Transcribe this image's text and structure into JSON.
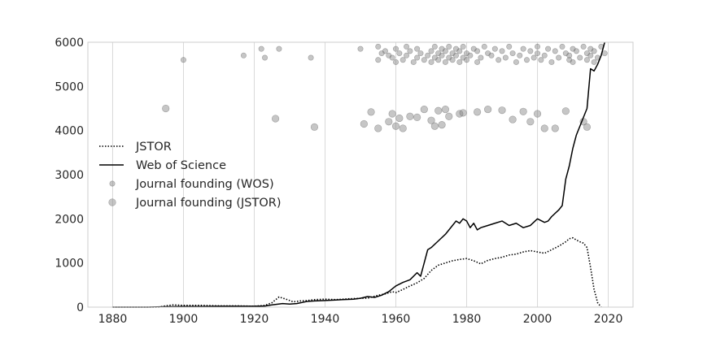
{
  "chart_data": {
    "type": "line",
    "title": "",
    "xlabel": "",
    "ylabel": "",
    "xlim": [
      1873,
      2027
    ],
    "ylim": [
      0,
      6000
    ],
    "xticks": [
      1880,
      1900,
      1920,
      1940,
      1960,
      1980,
      2000,
      2020
    ],
    "yticks": [
      0,
      1000,
      2000,
      3000,
      4000,
      5000,
      6000
    ],
    "grid": "vertical",
    "legend_position": "center-left",
    "series": [
      {
        "name": "JSTOR",
        "style": "dotted",
        "color": "#000000",
        "x": [
          1880,
          1885,
          1890,
          1893,
          1895,
          1897,
          1900,
          1905,
          1910,
          1915,
          1920,
          1923,
          1925,
          1927,
          1929,
          1931,
          1933,
          1935,
          1937,
          1940,
          1943,
          1945,
          1947,
          1950,
          1952,
          1955,
          1957,
          1959,
          1960,
          1962,
          1964,
          1966,
          1968,
          1970,
          1972,
          1974,
          1976,
          1978,
          1980,
          1982,
          1984,
          1986,
          1988,
          1990,
          1992,
          1994,
          1996,
          1998,
          2000,
          2002,
          2004,
          2006,
          2008,
          2009,
          2010,
          2011,
          2012,
          2013,
          2014,
          2015,
          2016,
          2017,
          2018
        ],
        "y": [
          0,
          0,
          0,
          0,
          30,
          50,
          40,
          40,
          30,
          30,
          20,
          40,
          100,
          230,
          180,
          120,
          140,
          150,
          170,
          180,
          170,
          180,
          190,
          200,
          200,
          270,
          300,
          350,
          330,
          400,
          480,
          550,
          650,
          830,
          950,
          1000,
          1050,
          1080,
          1100,
          1050,
          980,
          1060,
          1100,
          1130,
          1180,
          1200,
          1250,
          1280,
          1250,
          1220,
          1300,
          1380,
          1480,
          1550,
          1570,
          1520,
          1480,
          1450,
          1350,
          900,
          400,
          100,
          0
        ]
      },
      {
        "name": "Web of Science",
        "style": "solid",
        "color": "#000000",
        "x": [
          1880,
          1885,
          1890,
          1895,
          1900,
          1905,
          1910,
          1915,
          1920,
          1923,
          1925,
          1928,
          1930,
          1932,
          1935,
          1937,
          1940,
          1943,
          1945,
          1948,
          1950,
          1952,
          1954,
          1956,
          1958,
          1960,
          1962,
          1964,
          1966,
          1967,
          1968,
          1969,
          1970,
          1972,
          1974,
          1976,
          1977,
          1978,
          1979,
          1980,
          1981,
          1982,
          1983,
          1984,
          1986,
          1988,
          1990,
          1992,
          1994,
          1996,
          1998,
          2000,
          2002,
          2003,
          2004,
          2006,
          2007,
          2008,
          2009,
          2010,
          2011,
          2012,
          2013,
          2014,
          2015,
          2016,
          2017,
          2018,
          2019
        ],
        "y": [
          0,
          0,
          0,
          10,
          15,
          15,
          20,
          20,
          20,
          25,
          50,
          80,
          70,
          80,
          130,
          140,
          150,
          160,
          170,
          180,
          200,
          240,
          220,
          270,
          350,
          480,
          560,
          620,
          780,
          700,
          1000,
          1300,
          1350,
          1500,
          1650,
          1850,
          1950,
          1900,
          2000,
          1950,
          1800,
          1900,
          1750,
          1800,
          1850,
          1900,
          1950,
          1850,
          1900,
          1800,
          1850,
          2000,
          1920,
          1950,
          2050,
          2200,
          2300,
          2900,
          3200,
          3600,
          3900,
          4100,
          4300,
          4500,
          5400,
          5350,
          5500,
          5700,
          6000
        ]
      }
    ],
    "scatter_series": [
      {
        "name": "Journal founding (WOS)",
        "color": "#808080",
        "x": [
          1900,
          1917,
          1922,
          1923,
          1927,
          1936,
          1950,
          1955,
          1955,
          1956,
          1957,
          1958,
          1959,
          1960,
          1960,
          1961,
          1962,
          1963,
          1963,
          1964,
          1965,
          1966,
          1966,
          1967,
          1968,
          1969,
          1970,
          1970,
          1971,
          1971,
          1972,
          1972,
          1973,
          1973,
          1974,
          1974,
          1975,
          1975,
          1976,
          1976,
          1977,
          1977,
          1978,
          1978,
          1979,
          1979,
          1980,
          1980,
          1981,
          1982,
          1983,
          1983,
          1984,
          1985,
          1986,
          1987,
          1988,
          1989,
          1990,
          1991,
          1992,
          1993,
          1994,
          1995,
          1996,
          1997,
          1998,
          1999,
          2000,
          2000,
          2001,
          2002,
          2003,
          2004,
          2005,
          2006,
          2007,
          2008,
          2009,
          2009,
          2010,
          2010,
          2011,
          2012,
          2013,
          2014,
          2014,
          2015,
          2015,
          2016,
          2016,
          2017,
          2018,
          2019
        ],
        "y": [
          5600,
          5700,
          5850,
          5650,
          5850,
          5650,
          5850,
          5900,
          5600,
          5750,
          5800,
          5700,
          5650,
          5850,
          5550,
          5750,
          5600,
          5900,
          5700,
          5800,
          5550,
          5650,
          5850,
          5750,
          5600,
          5700,
          5800,
          5550,
          5900,
          5650,
          5750,
          5600,
          5850,
          5700,
          5550,
          5800,
          5650,
          5900,
          5750,
          5600,
          5700,
          5850,
          5550,
          5800,
          5650,
          5900,
          5750,
          5600,
          5700,
          5850,
          5550,
          5800,
          5650,
          5900,
          5750,
          5700,
          5850,
          5600,
          5800,
          5650,
          5900,
          5750,
          5550,
          5700,
          5850,
          5600,
          5800,
          5650,
          5900,
          5750,
          5600,
          5700,
          5850,
          5550,
          5800,
          5650,
          5900,
          5750,
          5600,
          5700,
          5850,
          5550,
          5800,
          5650,
          5900,
          5750,
          5600,
          5700,
          5850,
          5550,
          5800,
          5650,
          5900,
          5750
        ]
      },
      {
        "name": "Journal founding (JSTOR)",
        "color": "#808080",
        "x": [
          1895,
          1926,
          1937,
          1951,
          1953,
          1955,
          1958,
          1959,
          1960,
          1961,
          1962,
          1964,
          1966,
          1968,
          1970,
          1971,
          1972,
          1973,
          1974,
          1975,
          1978,
          1979,
          1983,
          1986,
          1990,
          1993,
          1996,
          1998,
          2000,
          2002,
          2005,
          2008,
          2013,
          2014
        ],
        "y": [
          4500,
          4270,
          4080,
          4150,
          4420,
          4050,
          4200,
          4380,
          4100,
          4280,
          4050,
          4320,
          4300,
          4480,
          4230,
          4100,
          4450,
          4130,
          4480,
          4320,
          4380,
          4400,
          4420,
          4480,
          4460,
          4250,
          4430,
          4200,
          4380,
          4050,
          4050,
          4440,
          4200,
          4080
        ]
      }
    ]
  }
}
